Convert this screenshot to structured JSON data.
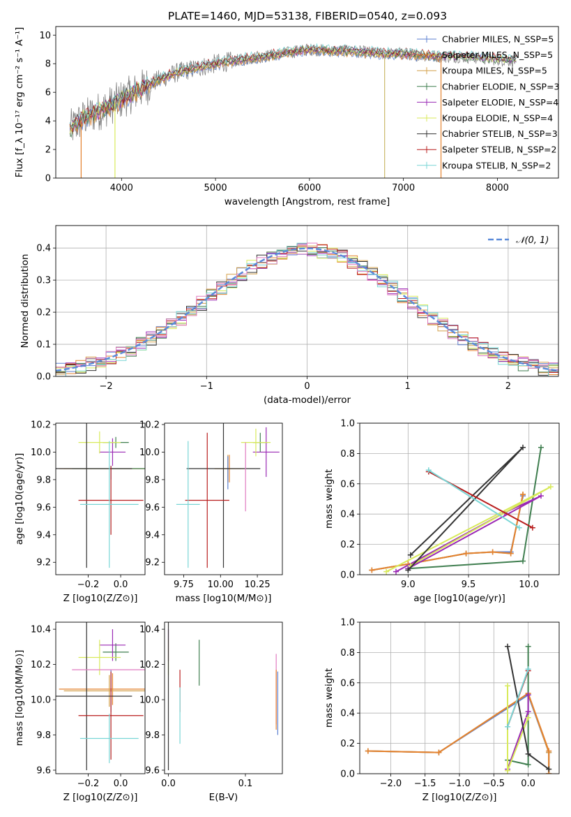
{
  "figure": {
    "title": "PLATE=1460, MJD=53138, FIBERID=0540, z=0.093"
  },
  "chart_data": [
    {
      "id": "spectrum",
      "type": "line",
      "xlabel": "wavelength [Angstrom, rest frame]",
      "ylabel": "Flux [f_λ 10⁻¹⁷ erg cm⁻² s⁻¹ A⁻¹]",
      "xlim": [
        3300,
        8650
      ],
      "ylim": [
        0,
        10.6
      ],
      "xticks": [
        "4000",
        "5000",
        "6000",
        "7000",
        "8000"
      ],
      "xtick_values": [
        4000,
        5000,
        6000,
        7000,
        8000
      ],
      "yticks": [
        "0",
        "2",
        "4",
        "6",
        "8",
        "10"
      ],
      "ytick_values": [
        0,
        2,
        4,
        6,
        8,
        10
      ],
      "legend_position": "right",
      "series": [
        {
          "name": "Chabrier MILES, N_SSP=5",
          "color": "#5b7fd0"
        },
        {
          "name": "Salpeter MILES, N_SSP=5",
          "color": "#e4822e"
        },
        {
          "name": "Kroupa MILES, N_SSP=5",
          "color": "#d4a04a"
        },
        {
          "name": "Chabrier ELODIE, N_SSP=3",
          "color": "#3f7e4f"
        },
        {
          "name": "Salpeter ELODIE, N_SSP=4",
          "color": "#9a28b4"
        },
        {
          "name": "Kroupa ELODIE, N_SSP=4",
          "color": "#d8ea5a"
        },
        {
          "name": "Chabrier STELIB, N_SSP=3",
          "color": "#333333"
        },
        {
          "name": "Salpeter STELIB, N_SSP=2",
          "color": "#b81c1c"
        },
        {
          "name": "Kroupa STELIB, N_SSP=2",
          "color": "#78d6d6"
        }
      ],
      "envelope": {
        "x": [
          3450,
          3600,
          3800,
          4000,
          4200,
          4400,
          4600,
          4800,
          5000,
          5200,
          5400,
          5600,
          5800,
          6000,
          6200,
          6400,
          6600,
          6800,
          7000,
          7200,
          7400,
          7600,
          7800,
          8000,
          8200
        ],
        "y": [
          3.4,
          4.2,
          4.8,
          5.5,
          6.2,
          6.9,
          7.4,
          7.7,
          8.0,
          8.2,
          8.4,
          8.6,
          8.8,
          9.0,
          8.9,
          8.9,
          8.8,
          8.7,
          8.7,
          8.6,
          8.5,
          8.5,
          8.4,
          8.3,
          8.2
        ]
      },
      "spikes": [
        {
          "x": 3930,
          "color": "#d8ea5a"
        },
        {
          "x": 6800,
          "color": "#c9b86a"
        },
        {
          "x": 7400,
          "color": "#e4822e"
        },
        {
          "x": 3570,
          "color": "#e4822e"
        }
      ]
    },
    {
      "id": "residuals",
      "type": "histogram",
      "xlabel": "(data-model)/error",
      "ylabel": "Normed distribution",
      "xlim": [
        -2.5,
        2.5
      ],
      "ylim": [
        0,
        0.47
      ],
      "xticks": [
        "−2",
        "−1",
        "0",
        "1",
        "2"
      ],
      "xtick_values": [
        -2,
        -1,
        0,
        1,
        2
      ],
      "yticks": [
        "0.0",
        "0.1",
        "0.2",
        "0.3",
        "0.4"
      ],
      "ytick_values": [
        0,
        0.1,
        0.2,
        0.3,
        0.4
      ],
      "grid": true,
      "bin_width": 0.1,
      "bin_start": -2.5,
      "reference_curve": {
        "label": "𝒩(0, 1)",
        "color": "#5b8bd9",
        "style": "dashed"
      },
      "legend_position": "top-right"
    },
    {
      "id": "age-vs-Z",
      "type": "scatter",
      "xlabel": "Z [log10(Z/Z⊙)]",
      "ylabel": "age  [log10(age/yr)]",
      "xlim": [
        -0.4,
        0.15
      ],
      "ylim": [
        9.11,
        10.21
      ],
      "xticks": [
        "−0.2",
        "0.0"
      ],
      "xtick_values": [
        -0.2,
        0.0
      ],
      "yticks": [
        "9.2",
        "9.4",
        "9.6",
        "9.8",
        "10.0",
        "10.2"
      ],
      "ytick_values": [
        9.2,
        9.4,
        9.6,
        9.8,
        10.0,
        10.2
      ],
      "points": [
        {
          "x": -0.05,
          "y": 9.88,
          "xerr": 0.33,
          "yerr": 0.0,
          "color": "#e4822e"
        },
        {
          "x": -0.07,
          "y": 9.88,
          "xerr": 0.28,
          "yerr": 0.0,
          "color": "#d4a04a"
        },
        {
          "x": -0.06,
          "y": 9.85,
          "xerr": 0.0,
          "yerr": 0.05,
          "color": "#5b7fd0"
        },
        {
          "x": -0.05,
          "y": 9.88,
          "xerr": 0.25,
          "yerr": 0.0,
          "color": "#3f7e4f"
        },
        {
          "x": -0.03,
          "y": 10.07,
          "xerr": 0.08,
          "yerr": 0.04,
          "color": "#3f7e4f"
        },
        {
          "x": -0.05,
          "y": 10.0,
          "xerr": 0.08,
          "yerr": 0.1,
          "color": "#9a28b4"
        },
        {
          "x": -0.13,
          "y": 10.07,
          "xerr": 0.13,
          "yerr": 0.08,
          "color": "#d8ea5a"
        },
        {
          "x": -0.21,
          "y": 9.88,
          "xerr": 0.28,
          "yerr": 0.72,
          "color": "#333333"
        },
        {
          "x": -0.06,
          "y": 9.65,
          "xerr": 0.2,
          "yerr": 0.25,
          "color": "#b81c1c"
        },
        {
          "x": -0.07,
          "y": 9.62,
          "xerr": 0.18,
          "yerr": 0.46,
          "color": "#78d6d6"
        }
      ]
    },
    {
      "id": "age-vs-mass",
      "type": "scatter",
      "xlabel": "mass [log10(M/M⊙)]",
      "ylabel": "",
      "xlim": [
        9.62,
        10.42
      ],
      "ylim": [
        9.11,
        10.21
      ],
      "xticks": [
        "9.75",
        "10.00",
        "10.25"
      ],
      "xtick_values": [
        9.75,
        10.0,
        10.25
      ],
      "yticks": [
        "9.2",
        "9.4",
        "9.6",
        "9.8",
        "10.0",
        "10.2"
      ],
      "ytick_values": [
        9.2,
        9.4,
        9.6,
        9.8,
        10.0,
        10.2
      ],
      "points": [
        {
          "x": 10.06,
          "y": 9.88,
          "xerr": 0.1,
          "yerr": 0.1,
          "color": "#e4822e"
        },
        {
          "x": 10.05,
          "y": 9.88,
          "xerr": 0.09,
          "yerr": 0.1,
          "color": "#d4a04a"
        },
        {
          "x": 10.05,
          "y": 9.85,
          "xerr": 0.0,
          "yerr": 0.12,
          "color": "#5b7fd0"
        },
        {
          "x": 10.27,
          "y": 10.07,
          "xerr": 0.05,
          "yerr": 0.07,
          "color": "#3f7e4f"
        },
        {
          "x": 10.31,
          "y": 10.0,
          "xerr": 0.09,
          "yerr": 0.18,
          "color": "#9a28b4"
        },
        {
          "x": 10.24,
          "y": 10.07,
          "xerr": 0.1,
          "yerr": 0.1,
          "color": "#d8ea5a"
        },
        {
          "x": 10.02,
          "y": 9.88,
          "xerr": 0.25,
          "yerr": 0.72,
          "color": "#333333"
        },
        {
          "x": 9.91,
          "y": 9.65,
          "xerr": 0.15,
          "yerr": 0.49,
          "color": "#b81c1c"
        },
        {
          "x": 9.78,
          "y": 9.62,
          "xerr": 0.08,
          "yerr": 0.46,
          "color": "#78d6d6"
        },
        {
          "x": 10.17,
          "y": 9.82,
          "xerr": 0.0,
          "yerr": 0.25,
          "color": "#e07ac0"
        }
      ]
    },
    {
      "id": "weight-vs-age",
      "type": "line",
      "xlabel": "age  [log10(age/yr)]",
      "ylabel": "mass weight",
      "xlim": [
        8.6,
        10.25
      ],
      "ylim": [
        0,
        1.0
      ],
      "xticks": [
        "9.0",
        "9.5",
        "10.0"
      ],
      "xtick_values": [
        9.0,
        9.5,
        10.0
      ],
      "yticks": [
        "0.0",
        "0.2",
        "0.4",
        "0.6",
        "0.8",
        "1.0"
      ],
      "ytick_values": [
        0,
        0.2,
        0.4,
        0.6,
        0.8,
        1.0
      ],
      "grid": true,
      "series": [
        {
          "color": "#5b7fd0",
          "x": [
            8.7,
            9.0,
            9.48,
            9.7,
            9.85,
            9.95
          ],
          "y": [
            0.03,
            0.07,
            0.14,
            0.15,
            0.15,
            0.52
          ]
        },
        {
          "color": "#d4a04a",
          "x": [
            8.7,
            9.0,
            9.48,
            9.7,
            9.85,
            9.95
          ],
          "y": [
            0.03,
            0.07,
            0.14,
            0.15,
            0.14,
            0.53
          ]
        },
        {
          "color": "#e4822e",
          "x": [
            8.7,
            9.0,
            9.48,
            9.7,
            9.85,
            9.95
          ],
          "y": [
            0.03,
            0.07,
            0.14,
            0.15,
            0.14,
            0.53
          ]
        },
        {
          "color": "#3f7e4f",
          "x": [
            9.0,
            9.95,
            10.1
          ],
          "y": [
            0.04,
            0.09,
            0.84
          ]
        },
        {
          "color": "#9a28b4",
          "x": [
            8.9,
            9.8,
            10.1,
            9.0
          ],
          "y": [
            0.02,
            0.41,
            0.52,
            0.04
          ]
        },
        {
          "color": "#d8ea5a",
          "x": [
            8.82,
            10.18,
            9.02
          ],
          "y": [
            0.02,
            0.58,
            0.06
          ]
        },
        {
          "color": "#333333",
          "x": [
            9.02,
            9.95,
            9.0
          ],
          "y": [
            0.13,
            0.84,
            0.03
          ]
        },
        {
          "color": "#b81c1c",
          "x": [
            9.17,
            10.03
          ],
          "y": [
            0.68,
            0.31
          ]
        },
        {
          "color": "#78d6d6",
          "x": [
            9.17,
            9.92
          ],
          "y": [
            0.69,
            0.31
          ]
        }
      ]
    },
    {
      "id": "mass-vs-Z",
      "type": "scatter",
      "xlabel": "Z [log10(Z/Z⊙)]",
      "ylabel": "mass [log10(M/M⊙)]",
      "xlim": [
        -0.4,
        0.15
      ],
      "ylim": [
        9.58,
        10.44
      ],
      "xticks": [
        "−0.2",
        "0.0"
      ],
      "xtick_values": [
        -0.2,
        0.0
      ],
      "yticks": [
        "9.6",
        "9.8",
        "10.0",
        "10.2",
        "10.4"
      ],
      "ytick_values": [
        9.6,
        9.8,
        10.0,
        10.2,
        10.4
      ],
      "points": [
        {
          "x": -0.05,
          "y": 10.06,
          "xerr": 0.33,
          "yerr": 0.09,
          "color": "#e4822e"
        },
        {
          "x": -0.07,
          "y": 10.05,
          "xerr": 0.28,
          "yerr": 0.09,
          "color": "#d4a04a"
        },
        {
          "x": -0.06,
          "y": 10.05,
          "xerr": 0.0,
          "yerr": 0.12,
          "color": "#5b7fd0"
        },
        {
          "x": -0.03,
          "y": 10.27,
          "xerr": 0.08,
          "yerr": 0.05,
          "color": "#3f7e4f"
        },
        {
          "x": -0.05,
          "y": 10.31,
          "xerr": 0.08,
          "yerr": 0.09,
          "color": "#9a28b4"
        },
        {
          "x": -0.13,
          "y": 10.24,
          "xerr": 0.13,
          "yerr": 0.1,
          "color": "#d8ea5a"
        },
        {
          "x": -0.21,
          "y": 10.02,
          "xerr": 0.28,
          "yerr": 0.42,
          "color": "#333333"
        },
        {
          "x": -0.06,
          "y": 9.91,
          "xerr": 0.2,
          "yerr": 0.25,
          "color": "#b81c1c"
        },
        {
          "x": -0.07,
          "y": 9.78,
          "xerr": 0.18,
          "yerr": 0.14,
          "color": "#78d6d6"
        },
        {
          "x": -0.05,
          "y": 10.17,
          "xerr": 0.25,
          "yerr": 0.0,
          "color": "#e07ac0"
        }
      ]
    },
    {
      "id": "mass-vs-ebv",
      "type": "scatter",
      "xlabel": "E(B-V)",
      "ylabel": "",
      "xlim": [
        -0.005,
        0.148
      ],
      "ylim": [
        9.58,
        10.44
      ],
      "xticks": [
        "0.0",
        "0.1"
      ],
      "xtick_values": [
        0.0,
        0.1
      ],
      "yticks": [
        "9.6",
        "9.8",
        "10.0",
        "10.2",
        "10.4"
      ],
      "ytick_values": [
        9.6,
        9.8,
        10.0,
        10.2,
        10.4
      ],
      "points": [
        {
          "x": 0.0,
          "y": 10.31,
          "xerr": 0.0,
          "yerr": 0.09,
          "color": "#9a28b4"
        },
        {
          "x": 0.0,
          "y": 10.24,
          "xerr": 0.0,
          "yerr": 0.1,
          "color": "#d8ea5a"
        },
        {
          "x": 0.0,
          "y": 10.02,
          "xerr": 0.0,
          "yerr": 0.42,
          "color": "#333333"
        },
        {
          "x": 0.015,
          "y": 10.05,
          "xerr": 0.0,
          "yerr": 0.12,
          "color": "#b81c1c"
        },
        {
          "x": 0.015,
          "y": 9.91,
          "xerr": 0.0,
          "yerr": 0.16,
          "color": "#78d6d6"
        },
        {
          "x": 0.04,
          "y": 10.21,
          "xerr": 0.0,
          "yerr": 0.13,
          "color": "#3f7e4f"
        },
        {
          "x": 0.14,
          "y": 10.06,
          "xerr": 0.0,
          "yerr": 0.2,
          "color": "#e07ac0"
        },
        {
          "x": 0.14,
          "y": 10.0,
          "xerr": 0.0,
          "yerr": 0.17,
          "color": "#e4822e"
        },
        {
          "x": 0.142,
          "y": 9.98,
          "xerr": 0.0,
          "yerr": 0.18,
          "color": "#5b7fd0"
        }
      ]
    },
    {
      "id": "weight-vs-Z",
      "type": "line",
      "xlabel": "Z [log10(Z/Z⊙)]",
      "ylabel": "mass weight",
      "xlim": [
        -2.45,
        0.45
      ],
      "ylim": [
        0,
        1.0
      ],
      "xticks": [
        "−2.0",
        "−1.5",
        "−1.0",
        "−0.5",
        "0.0"
      ],
      "xtick_values": [
        -2.0,
        -1.5,
        -1.0,
        -0.5,
        0.0
      ],
      "yticks": [
        "0.0",
        "0.2",
        "0.4",
        "0.6",
        "0.8",
        "1.0"
      ],
      "ytick_values": [
        0,
        0.2,
        0.4,
        0.6,
        0.8,
        1.0
      ],
      "grid": true,
      "series": [
        {
          "color": "#5b7fd0",
          "x": [
            -2.33,
            -1.3,
            0.0,
            0.3,
            0.3
          ],
          "y": [
            0.15,
            0.14,
            0.52,
            0.14,
            0.0
          ]
        },
        {
          "color": "#d4a04a",
          "x": [
            -2.33,
            -1.3,
            0.0,
            0.3,
            0.3
          ],
          "y": [
            0.15,
            0.14,
            0.53,
            0.14,
            0.0
          ]
        },
        {
          "color": "#e4822e",
          "x": [
            -2.33,
            -1.3,
            0.0,
            0.3,
            0.3
          ],
          "y": [
            0.15,
            0.14,
            0.53,
            0.15,
            0.0
          ]
        },
        {
          "color": "#3f7e4f",
          "x": [
            -0.3,
            0.0,
            0.0
          ],
          "y": [
            0.09,
            0.06,
            0.84
          ]
        },
        {
          "color": "#9a28b4",
          "x": [
            0.0,
            0.0,
            -0.3
          ],
          "y": [
            0.52,
            0.41,
            0.03
          ]
        },
        {
          "color": "#d8ea5a",
          "x": [
            -0.3,
            -0.3,
            0.0
          ],
          "y": [
            0.58,
            0.02,
            0.37
          ]
        },
        {
          "color": "#333333",
          "x": [
            -0.3,
            0.0,
            0.3
          ],
          "y": [
            0.84,
            0.13,
            0.03
          ]
        },
        {
          "color": "#b81c1c",
          "x": [
            0.0,
            -0.3
          ],
          "y": [
            0.68,
            0.31
          ]
        },
        {
          "color": "#78d6d6",
          "x": [
            0.0,
            -0.3
          ],
          "y": [
            0.69,
            0.31
          ]
        }
      ]
    }
  ]
}
